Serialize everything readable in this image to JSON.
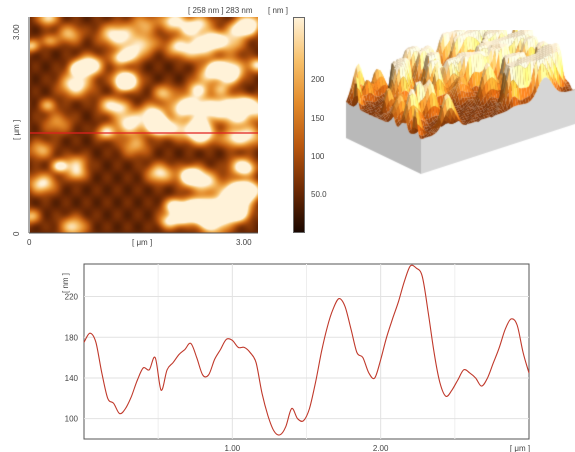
{
  "afm_map": {
    "header_text": "[ 258 nm ] 283 nm",
    "x_ticks": [
      "0",
      "3.00"
    ],
    "x_unit": "[ μm ]",
    "y_ticks": [
      "3.00",
      "0"
    ],
    "y_unit": "[ μm ]",
    "cmap_colors": [
      "#1a0700",
      "#6e2a04",
      "#b8560e",
      "#e28a2a",
      "#f7c06a",
      "#fff2d8"
    ]
  },
  "colorbar": {
    "unit": "[ nm ]",
    "ticks": [
      "200",
      "150",
      "100",
      "50.0"
    ],
    "range": [
      0,
      283
    ]
  },
  "chart_data": {
    "type": "line",
    "x_unit": "[ μm ]",
    "y_unit": "[ nm ]",
    "xlim": [
      0,
      3.0
    ],
    "ylim": [
      80,
      252
    ],
    "x_ticks": [
      "1.00",
      "2.00"
    ],
    "y_ticks": [
      "100",
      "140",
      "180",
      "220"
    ],
    "grid": true,
    "line_color": "#c0392b",
    "series": [
      {
        "x": [
          0.0,
          0.04,
          0.08,
          0.12,
          0.16,
          0.2,
          0.24,
          0.28,
          0.32,
          0.36,
          0.4,
          0.44,
          0.48,
          0.52,
          0.56,
          0.6,
          0.64,
          0.68,
          0.72,
          0.76,
          0.8,
          0.84,
          0.88,
          0.92,
          0.96,
          1.0,
          1.04,
          1.08,
          1.12,
          1.16,
          1.2,
          1.24,
          1.28,
          1.32,
          1.36,
          1.4,
          1.44,
          1.48,
          1.52,
          1.56,
          1.6,
          1.64,
          1.68,
          1.72,
          1.76,
          1.8,
          1.84,
          1.88,
          1.92,
          1.96,
          2.0,
          2.04,
          2.08,
          2.12,
          2.16,
          2.2,
          2.24,
          2.28,
          2.32,
          2.36,
          2.4,
          2.44,
          2.48,
          2.52,
          2.56,
          2.6,
          2.64,
          2.68,
          2.72,
          2.76,
          2.8,
          2.84,
          2.88,
          2.92,
          2.96,
          3.0
        ],
        "y": [
          175,
          184,
          175,
          145,
          120,
          115,
          105,
          110,
          122,
          138,
          150,
          148,
          160,
          128,
          148,
          155,
          163,
          168,
          174,
          160,
          143,
          143,
          158,
          168,
          178,
          177,
          170,
          170,
          165,
          155,
          125,
          103,
          88,
          84,
          92,
          110,
          100,
          98,
          110,
          135,
          165,
          190,
          208,
          218,
          210,
          188,
          165,
          160,
          145,
          140,
          158,
          180,
          198,
          215,
          235,
          250,
          248,
          240,
          205,
          165,
          135,
          122,
          128,
          138,
          148,
          145,
          140,
          132,
          140,
          155,
          170,
          188,
          198,
          192,
          165,
          145
        ]
      }
    ]
  }
}
